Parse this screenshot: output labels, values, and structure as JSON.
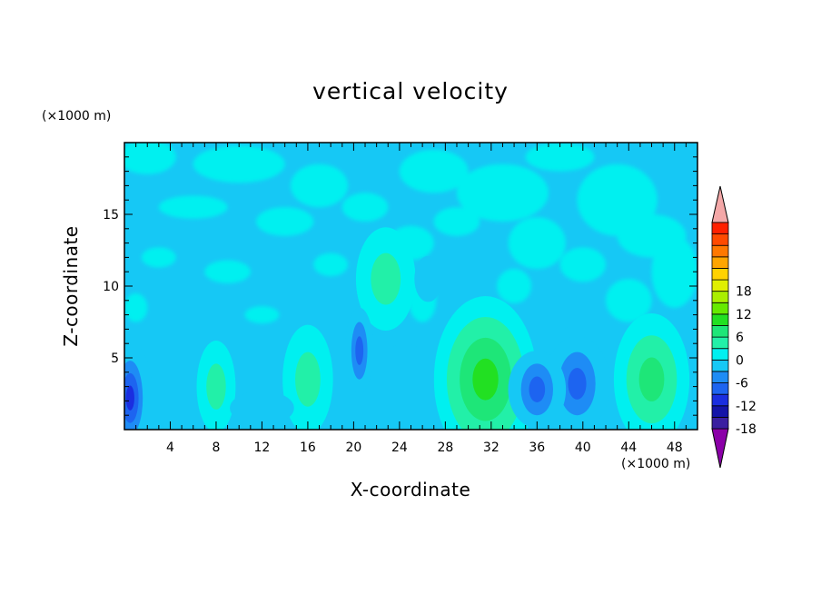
{
  "chart_data": {
    "type": "heatmap",
    "title": "vertical velocity",
    "xlabel": "X-coordinate",
    "ylabel": "Z-coordinate",
    "x_unit": "(×1000 m)",
    "y_unit": "(×1000 m)",
    "xlim": [
      0,
      50
    ],
    "ylim": [
      0,
      20
    ],
    "x_ticks": [
      "4",
      "8",
      "12",
      "16",
      "20",
      "24",
      "28",
      "32",
      "36",
      "40",
      "44",
      "48"
    ],
    "y_ticks": [
      "5",
      "10",
      "15"
    ],
    "colorbar": {
      "range": [
        -21,
        21
      ],
      "tick_labels": [
        "18",
        "12",
        "6",
        "0",
        "-6",
        "-12",
        "-18"
      ],
      "tick_values": [
        18,
        12,
        6,
        0,
        -6,
        -12,
        -18
      ],
      "level_step": 3,
      "colors": [
        "#8b00a8",
        "#3a1fa0",
        "#1414a8",
        "#1a2ee0",
        "#1d64f0",
        "#1e8cf5",
        "#16c8f5",
        "#00f0f0",
        "#22f0a8",
        "#1ee678",
        "#22e022",
        "#66ea00",
        "#aaef00",
        "#e0ef00",
        "#ffd200",
        "#ffa500",
        "#ff7800",
        "#ff4a00",
        "#ff2000",
        "#f4a8a8"
      ]
    },
    "features": [
      {
        "label": "updraft",
        "x": 22.8,
        "z": 10.5,
        "max_value": 6
      },
      {
        "label": "updraft",
        "x": 31.5,
        "z": 3.5,
        "max_value": 10
      },
      {
        "label": "updraft",
        "x": 46.0,
        "z": 3.5,
        "max_value": 8
      },
      {
        "label": "updraft",
        "x": 8.0,
        "z": 3.0,
        "max_value": 5
      },
      {
        "label": "updraft",
        "x": 16.0,
        "z": 3.5,
        "max_value": 4
      },
      {
        "label": "downdraft",
        "x": 0.5,
        "z": 2.2,
        "min_value": -10
      },
      {
        "label": "downdraft",
        "x": 20.5,
        "z": 5.5,
        "min_value": -8
      },
      {
        "label": "downdraft",
        "x": 39.5,
        "z": 3.2,
        "min_value": -9
      },
      {
        "label": "downdraft",
        "x": 36.0,
        "z": 2.8,
        "min_value": -7
      }
    ]
  }
}
